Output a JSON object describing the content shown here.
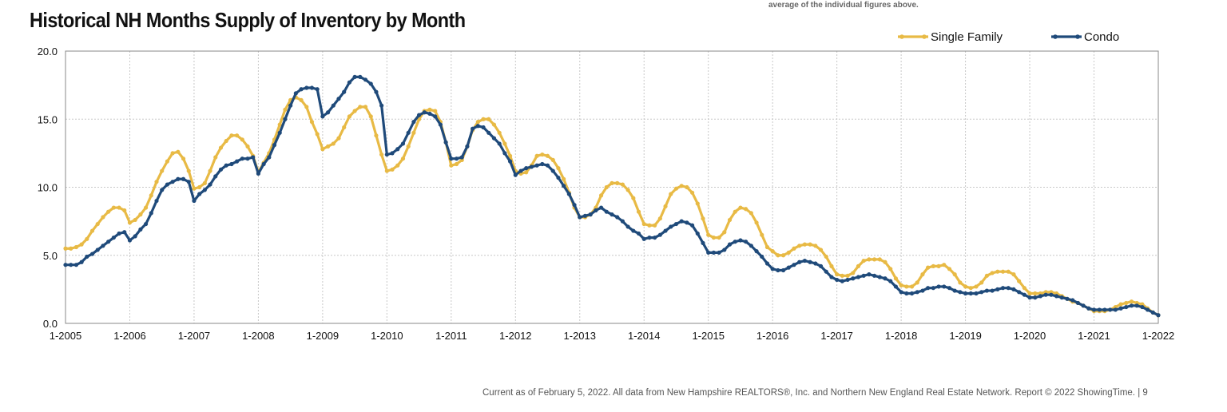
{
  "page": {
    "title": "Historical NH Months Supply of Inventory by Month",
    "top_note": "average of the individual figures above.",
    "footer": "Current as of February 5, 2022.  All data from New Hampshire REALTORS®, Inc. and Northern New England Real Estate Network. Report © 2022 ShowingTime.  |  9"
  },
  "chart_data": {
    "type": "line",
    "title": "Historical NH Months Supply of Inventory by Month",
    "x_tick_labels": [
      "1-2005",
      "1-2006",
      "1-2007",
      "1-2008",
      "1-2009",
      "1-2010",
      "1-2011",
      "1-2012",
      "1-2013",
      "1-2014",
      "1-2015",
      "1-2016",
      "1-2017",
      "1-2018",
      "1-2019",
      "1-2020",
      "1-2021",
      "1-2022"
    ],
    "y_tick_labels": [
      "0.0",
      "5.0",
      "10.0",
      "15.0",
      "20.0"
    ],
    "ylim": [
      0,
      20
    ],
    "x_start": "1-2005",
    "x_end": "1-2022",
    "grid": true,
    "legend_position": "top-right",
    "colors": {
      "Single Family": "#E8BA45",
      "Condo": "#1F4A7A"
    },
    "series": [
      {
        "name": "Single Family",
        "values": [
          5.5,
          5.5,
          5.6,
          5.8,
          6.2,
          6.8,
          7.3,
          7.8,
          8.2,
          8.5,
          8.5,
          8.3,
          7.4,
          7.6,
          8.0,
          8.5,
          9.4,
          10.4,
          11.2,
          11.9,
          12.5,
          12.6,
          12.1,
          11.2,
          9.9,
          10.0,
          10.3,
          11.2,
          12.2,
          12.9,
          13.4,
          13.8,
          13.8,
          13.5,
          13.0,
          12.3,
          11.1,
          11.8,
          12.5,
          13.5,
          14.6,
          15.7,
          16.4,
          16.6,
          16.4,
          15.9,
          14.8,
          13.9,
          12.8,
          13.0,
          13.2,
          13.6,
          14.4,
          15.2,
          15.6,
          15.9,
          15.9,
          15.2,
          13.8,
          12.4,
          11.2,
          11.3,
          11.6,
          12.1,
          13.0,
          14.0,
          15.0,
          15.6,
          15.7,
          15.6,
          14.8,
          13.3,
          11.6,
          11.7,
          12.0,
          13.0,
          14.2,
          14.8,
          15.0,
          15.0,
          14.6,
          14.0,
          13.2,
          12.3,
          11.2,
          11.0,
          11.1,
          11.6,
          12.3,
          12.4,
          12.3,
          12.0,
          11.4,
          10.6,
          9.6,
          8.5,
          7.8,
          7.8,
          8.0,
          8.5,
          9.4,
          10.0,
          10.3,
          10.3,
          10.2,
          9.8,
          9.2,
          8.2,
          7.3,
          7.2,
          7.2,
          7.7,
          8.6,
          9.5,
          9.9,
          10.1,
          10.0,
          9.6,
          8.8,
          7.7,
          6.5,
          6.3,
          6.3,
          6.7,
          7.6,
          8.2,
          8.5,
          8.4,
          8.1,
          7.4,
          6.5,
          5.6,
          5.3,
          5.0,
          5.0,
          5.2,
          5.5,
          5.7,
          5.8,
          5.8,
          5.7,
          5.4,
          4.9,
          4.2,
          3.6,
          3.5,
          3.5,
          3.7,
          4.2,
          4.6,
          4.7,
          4.7,
          4.7,
          4.5,
          4.0,
          3.3,
          2.8,
          2.7,
          2.7,
          3.0,
          3.6,
          4.1,
          4.2,
          4.2,
          4.3,
          4.0,
          3.6,
          3.0,
          2.7,
          2.6,
          2.7,
          3.0,
          3.5,
          3.7,
          3.8,
          3.8,
          3.8,
          3.6,
          3.1,
          2.6,
          2.2,
          2.2,
          2.2,
          2.3,
          2.3,
          2.2,
          2.0,
          1.8,
          1.6,
          1.5,
          1.3,
          1.1,
          0.9,
          0.9,
          0.9,
          1.0,
          1.2,
          1.4,
          1.5,
          1.6,
          1.5,
          1.4,
          1.1,
          0.8,
          0.6
        ]
      },
      {
        "name": "Condo",
        "values": [
          4.3,
          4.3,
          4.3,
          4.5,
          4.9,
          5.1,
          5.4,
          5.7,
          6.0,
          6.3,
          6.6,
          6.7,
          6.1,
          6.4,
          6.9,
          7.3,
          8.1,
          9.0,
          9.8,
          10.2,
          10.4,
          10.6,
          10.6,
          10.4,
          9.0,
          9.5,
          9.8,
          10.2,
          10.8,
          11.3,
          11.6,
          11.7,
          11.9,
          12.1,
          12.1,
          12.2,
          11.0,
          11.7,
          12.2,
          13.1,
          14.0,
          15.0,
          16.0,
          16.9,
          17.2,
          17.3,
          17.3,
          17.2,
          15.2,
          15.5,
          16.0,
          16.5,
          17.0,
          17.7,
          18.1,
          18.1,
          17.9,
          17.6,
          17.0,
          16.0,
          12.4,
          12.5,
          12.8,
          13.2,
          14.0,
          14.8,
          15.3,
          15.5,
          15.4,
          15.2,
          14.6,
          13.3,
          12.1,
          12.1,
          12.2,
          13.0,
          14.3,
          14.5,
          14.4,
          14.0,
          13.6,
          13.2,
          12.5,
          11.9,
          10.9,
          11.2,
          11.4,
          11.5,
          11.6,
          11.7,
          11.6,
          11.2,
          10.7,
          10.1,
          9.5,
          8.7,
          7.8,
          7.9,
          8.0,
          8.3,
          8.5,
          8.2,
          8.0,
          7.8,
          7.5,
          7.1,
          6.8,
          6.6,
          6.2,
          6.3,
          6.3,
          6.5,
          6.8,
          7.1,
          7.3,
          7.5,
          7.4,
          7.2,
          6.6,
          5.9,
          5.2,
          5.2,
          5.2,
          5.4,
          5.8,
          6.0,
          6.1,
          6.0,
          5.7,
          5.3,
          4.9,
          4.4,
          4.0,
          3.9,
          3.9,
          4.1,
          4.3,
          4.5,
          4.6,
          4.5,
          4.4,
          4.2,
          3.8,
          3.4,
          3.2,
          3.1,
          3.2,
          3.3,
          3.4,
          3.5,
          3.6,
          3.5,
          3.4,
          3.3,
          3.1,
          2.7,
          2.3,
          2.2,
          2.2,
          2.3,
          2.4,
          2.6,
          2.6,
          2.7,
          2.7,
          2.6,
          2.4,
          2.3,
          2.2,
          2.2,
          2.2,
          2.3,
          2.4,
          2.4,
          2.5,
          2.6,
          2.6,
          2.5,
          2.3,
          2.1,
          1.9,
          1.9,
          2.0,
          2.1,
          2.1,
          2.0,
          1.9,
          1.8,
          1.7,
          1.5,
          1.3,
          1.1,
          1.0,
          1.0,
          1.0,
          1.0,
          1.0,
          1.1,
          1.2,
          1.3,
          1.3,
          1.2,
          1.0,
          0.8,
          0.6
        ]
      }
    ]
  }
}
